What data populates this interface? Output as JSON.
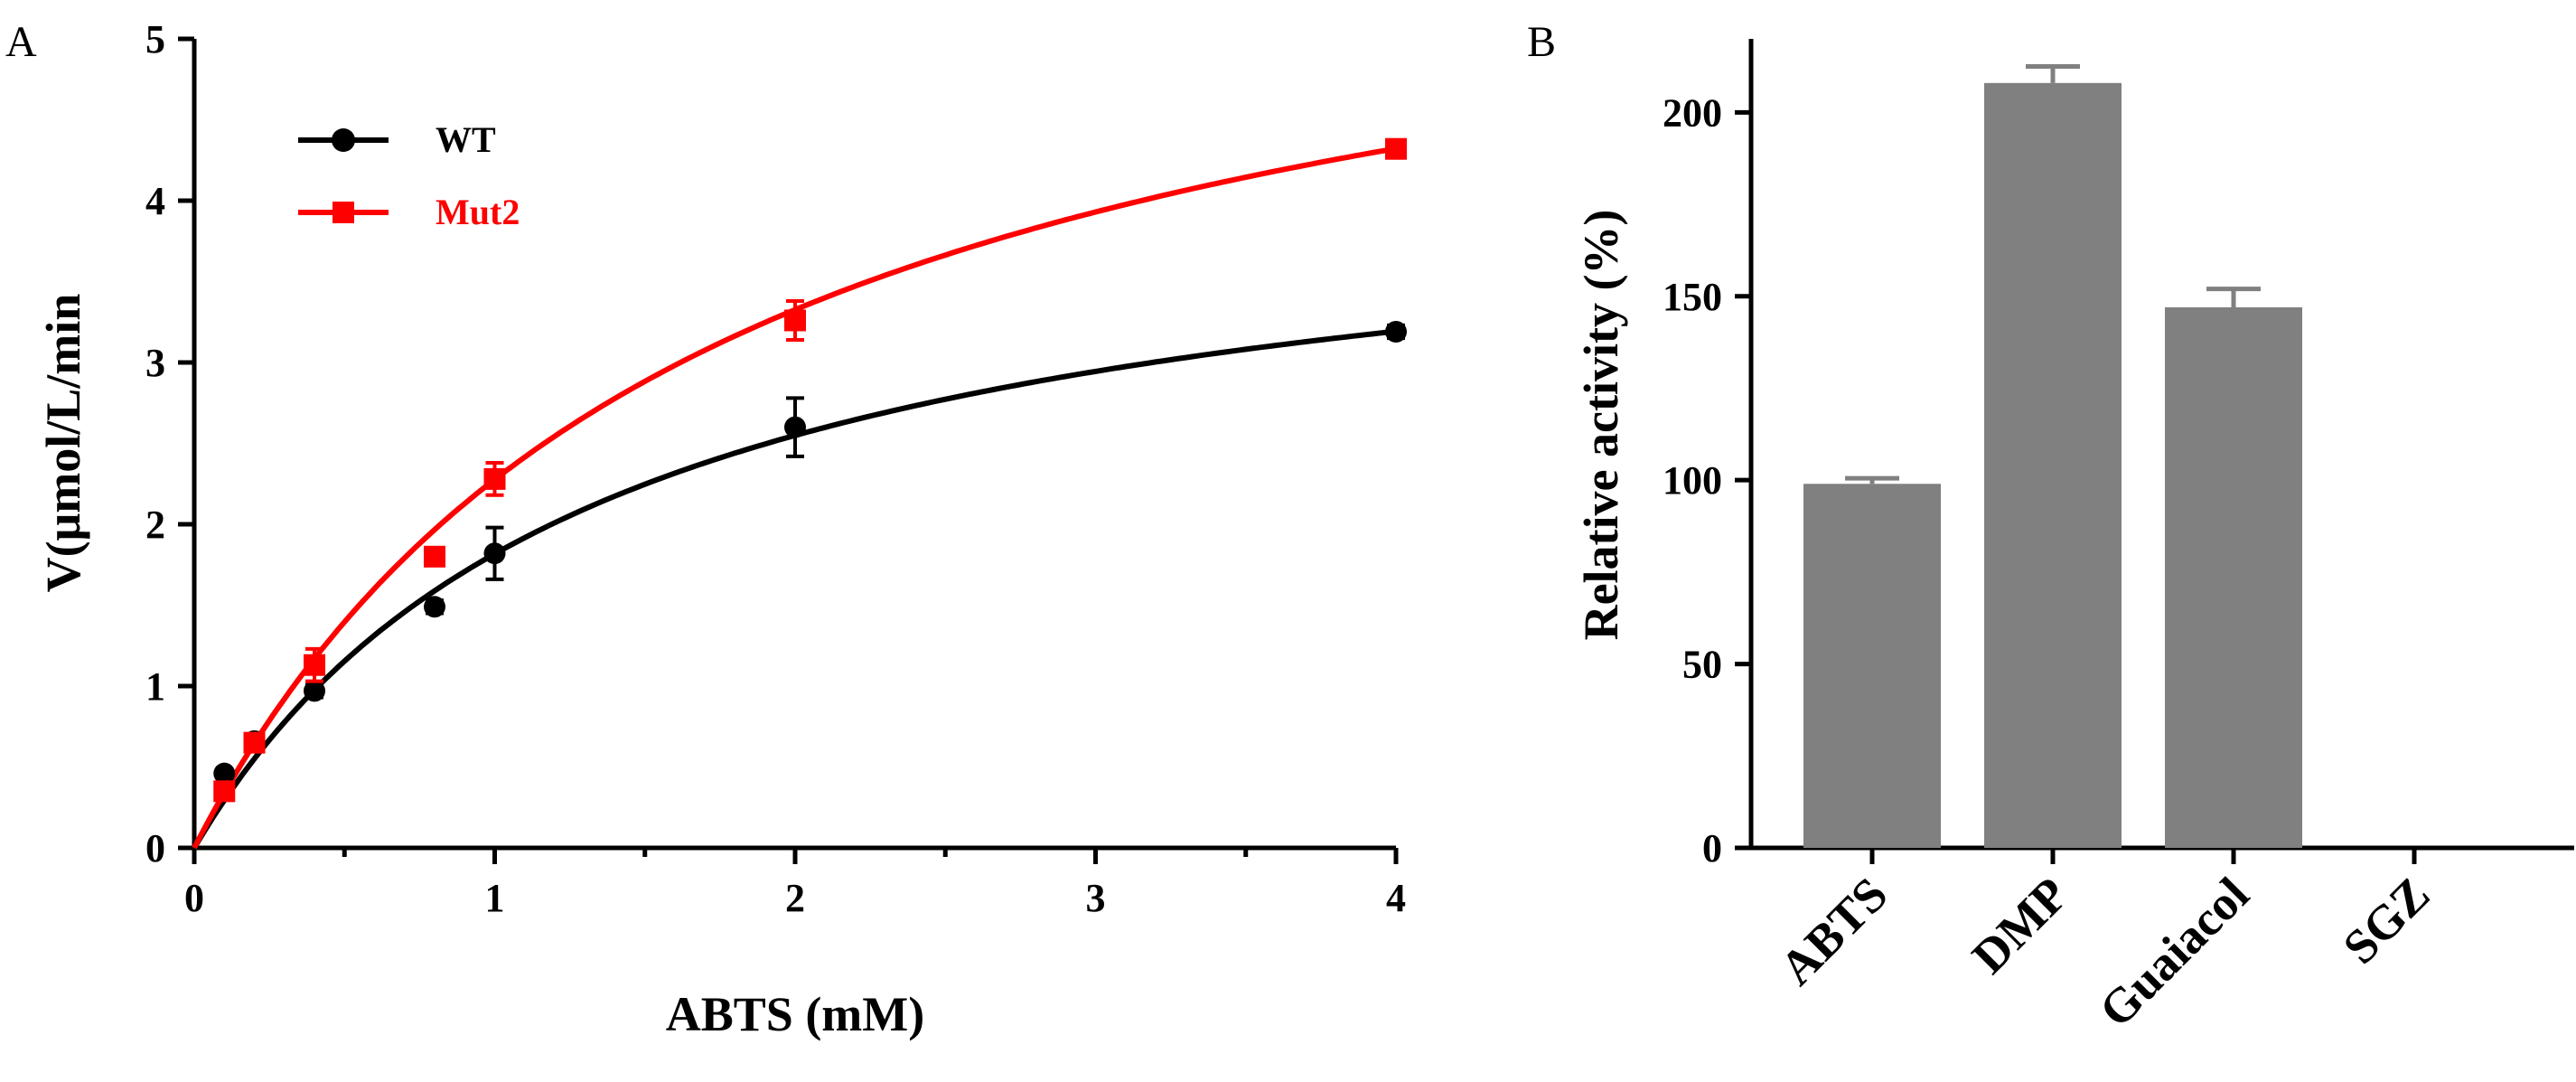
{
  "chart_data": [
    {
      "panel": "A",
      "type": "scatter",
      "xlabel": "ABTS (mM)",
      "ylabel": "V(μmol/L/min",
      "xlim": [
        0,
        4
      ],
      "ylim": [
        0,
        5
      ],
      "xticks": [
        "0",
        "1",
        "2",
        "3",
        "4"
      ],
      "yticks": [
        "0",
        "1",
        "2",
        "3",
        "4",
        "5"
      ],
      "legend_position": "top-left",
      "series": [
        {
          "name": "WT",
          "color": "#000000",
          "marker": "circle",
          "x": [
            0.1,
            0.2,
            0.4,
            0.8,
            1.0,
            2.0,
            4.0
          ],
          "y": [
            0.46,
            0.66,
            0.97,
            1.49,
            1.82,
            2.6,
            3.19
          ],
          "err": [
            0.02,
            0.03,
            0.04,
            0.04,
            0.16,
            0.18,
            0.04
          ],
          "fit": {
            "model": "michaelis-menten",
            "vmax": 4.27,
            "km": 1.35
          }
        },
        {
          "name": "Mut2",
          "color": "#ff0000",
          "marker": "square",
          "x": [
            0.1,
            0.2,
            0.4,
            0.8,
            1.0,
            2.0,
            4.0
          ],
          "y": [
            0.35,
            0.65,
            1.13,
            1.8,
            2.28,
            3.26,
            4.32
          ],
          "err": [
            0.04,
            0.04,
            0.1,
            0.05,
            0.1,
            0.12,
            0.04
          ],
          "fit": {
            "model": "michaelis-menten",
            "vmax": 6.17,
            "km": 1.71
          }
        }
      ]
    },
    {
      "panel": "B",
      "type": "bar",
      "ylabel": "Relative activity (%)",
      "ylim": [
        0,
        220
      ],
      "yticks": [
        "0",
        "50",
        "100",
        "150",
        "200"
      ],
      "categories": [
        "ABTS",
        "DMP",
        "Guaiacol",
        "SGZ"
      ],
      "values": [
        99,
        208,
        147,
        0
      ],
      "errors": [
        1.5,
        4.5,
        5,
        0
      ],
      "color": "#808080"
    }
  ]
}
